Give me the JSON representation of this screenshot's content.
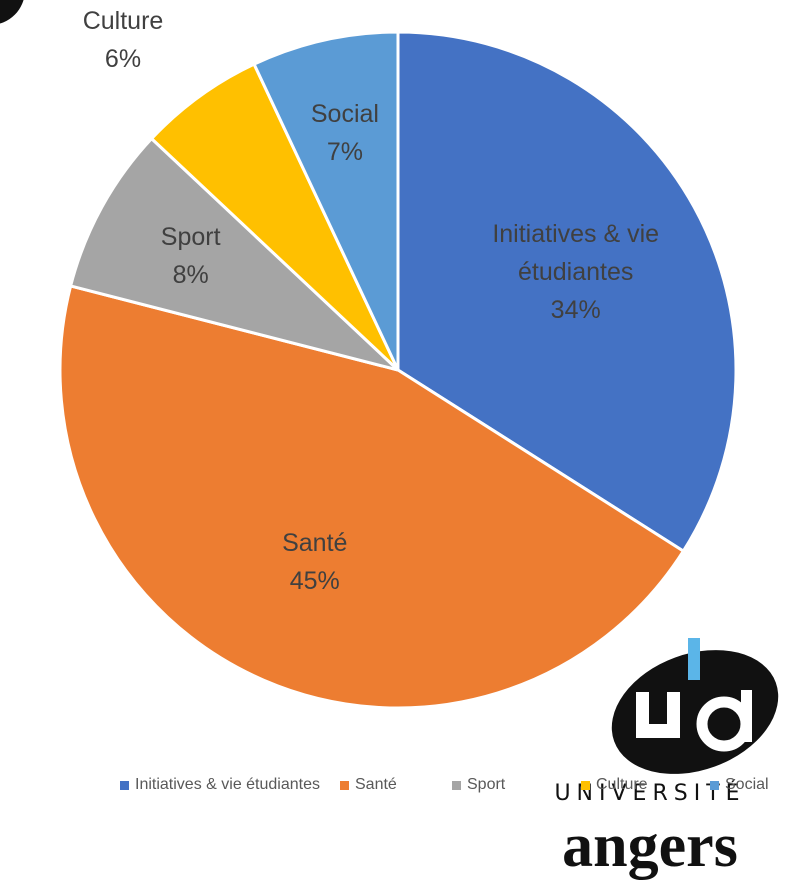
{
  "chart_data": {
    "type": "pie",
    "categories": [
      "Initiatives & vie étudiantes",
      "Santé",
      "Sport",
      "Culture",
      "Social"
    ],
    "values": [
      34,
      45,
      8,
      6,
      7
    ],
    "value_labels": [
      "34%",
      "45%",
      "8%",
      "6%",
      "7%"
    ],
    "colors": [
      "#4472c4",
      "#ed7d31",
      "#a5a5a5",
      "#ffc000",
      "#5b9bd5"
    ],
    "legend": "bottom"
  },
  "logo": {
    "line1": "université",
    "line2": "angers"
  }
}
